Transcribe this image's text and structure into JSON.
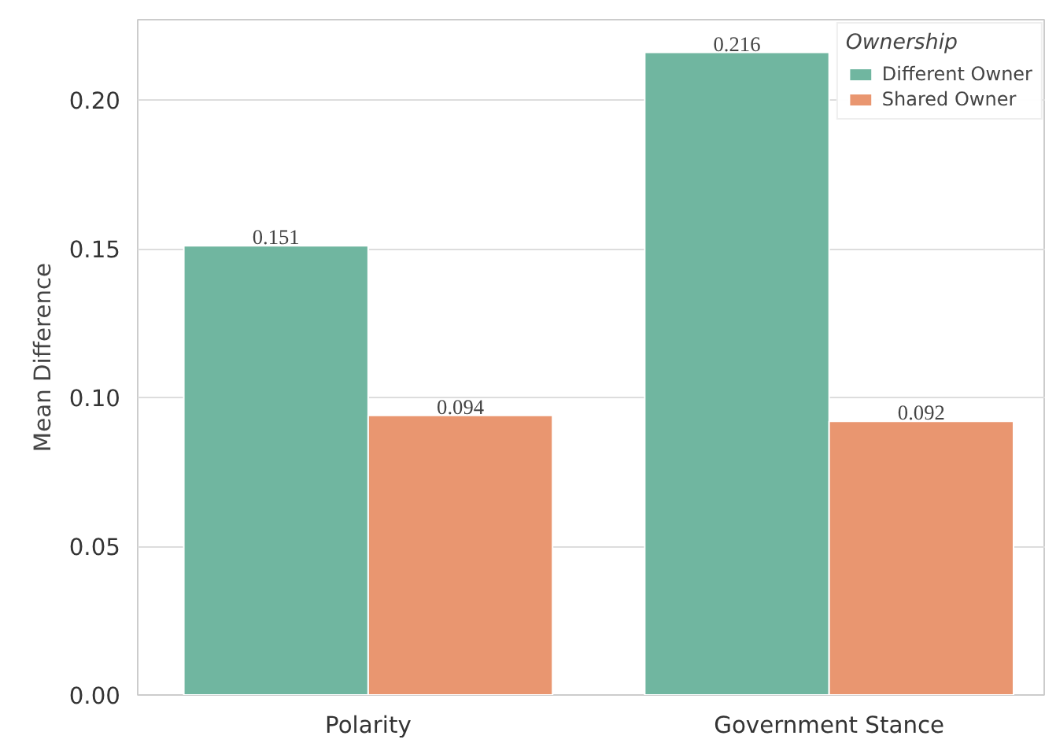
{
  "chart_data": {
    "type": "bar",
    "ylabel": "Mean Difference",
    "legend_title": "Ownership",
    "categories": [
      "Polarity",
      "Government Stance"
    ],
    "series": [
      {
        "name": "Different Owner",
        "color": "#70b6a0",
        "values": [
          0.151,
          0.216
        ]
      },
      {
        "name": "Shared Owner",
        "color": "#e99670",
        "values": [
          0.094,
          0.092
        ]
      }
    ],
    "ylim": [
      0,
      0.227
    ],
    "yticks": [
      {
        "value": 0,
        "label": "0.00"
      },
      {
        "value": 0.05,
        "label": "0.05"
      },
      {
        "value": 0.1,
        "label": "0.10"
      },
      {
        "value": 0.15,
        "label": "0.15"
      },
      {
        "value": 0.2,
        "label": "0.20"
      }
    ],
    "data_labels": true,
    "grid": "y",
    "legend": "top right"
  }
}
